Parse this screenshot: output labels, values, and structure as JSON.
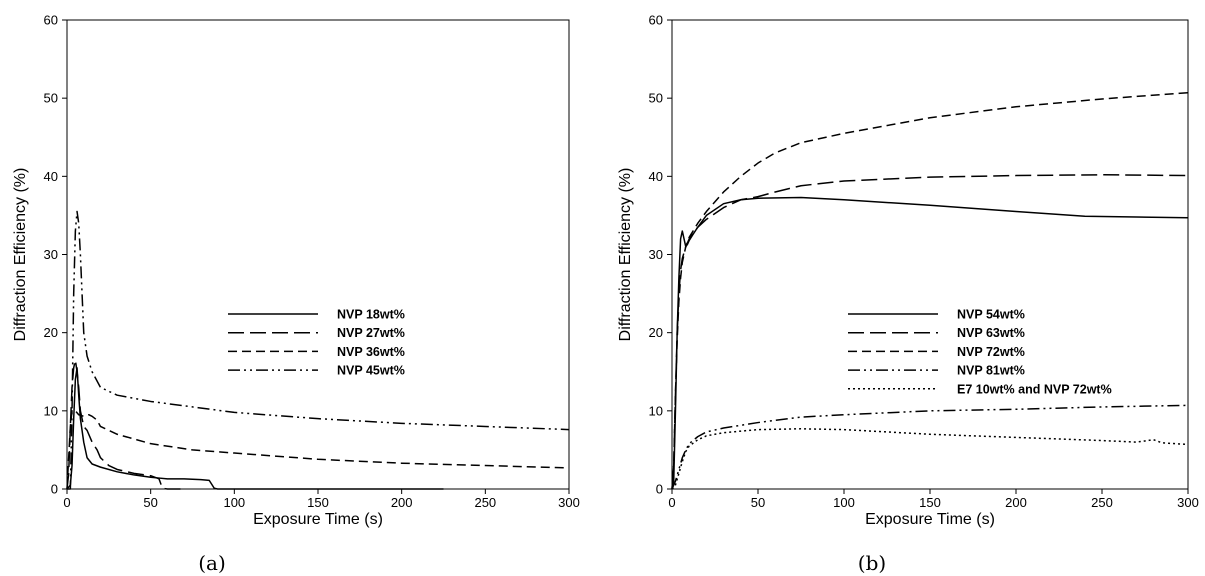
{
  "chart_data": [
    {
      "panel_label": "(a)",
      "type": "line",
      "xlabel": "Exposure Time (s)",
      "ylabel": "Diffraction Efficiency (%)",
      "xlim": [
        0,
        300
      ],
      "ylim": [
        0,
        60
      ],
      "xticks": [
        0,
        50,
        100,
        150,
        200,
        250,
        300
      ],
      "yticks": [
        0,
        10,
        20,
        30,
        40,
        50,
        60
      ],
      "grid": false,
      "legend_position": "center-right",
      "series": [
        {
          "name": "NVP 18wt%",
          "dash": "solid",
          "x": [
            0,
            2,
            3,
            4,
            5,
            6,
            7,
            8,
            10,
            12,
            15,
            20,
            30,
            40,
            50,
            55,
            60,
            70,
            80,
            85,
            88,
            90,
            100,
            150,
            200,
            225
          ],
          "y": [
            0,
            0.5,
            3,
            9,
            14,
            15.5,
            12,
            9,
            6,
            4,
            3.2,
            2.8,
            2.2,
            1.8,
            1.5,
            1.4,
            1.3,
            1.3,
            1.2,
            1.1,
            0.1,
            0,
            0,
            0,
            0,
            0
          ]
        },
        {
          "name": "NVP 27wt%",
          "dash": "long-dash",
          "x": [
            0,
            1,
            2,
            3,
            4,
            5,
            6,
            7,
            8,
            10,
            12,
            15,
            18,
            20,
            25,
            30,
            40,
            50,
            55,
            57,
            60,
            70
          ],
          "y": [
            0,
            2,
            8,
            13,
            15.5,
            16.5,
            15,
            13,
            10,
            8,
            7.5,
            6,
            5,
            4,
            3,
            2.5,
            2,
            1.7,
            1.3,
            0.1,
            0,
            0
          ]
        },
        {
          "name": "NVP 36wt%",
          "dash": "dash",
          "x": [
            0,
            1,
            2,
            3,
            4,
            5,
            7,
            10,
            13,
            15,
            18,
            20,
            30,
            50,
            75,
            100,
            150,
            200,
            250,
            300
          ],
          "y": [
            0,
            4,
            8,
            10,
            10.2,
            10,
            9.5,
            9.3,
            9.5,
            9.3,
            8.8,
            8,
            7,
            5.8,
            5,
            4.6,
            3.8,
            3.3,
            3.0,
            2.7
          ]
        },
        {
          "name": "NVP 45wt%",
          "dash": "dash-dot-dot",
          "x": [
            0,
            2,
            3,
            4,
            5,
            6,
            7,
            8,
            9,
            10,
            12,
            15,
            20,
            30,
            50,
            75,
            100,
            150,
            200,
            250,
            300
          ],
          "y": [
            0,
            0,
            10,
            25,
            33,
            35.5,
            34,
            30,
            25,
            20,
            17,
            15,
            13,
            12,
            11.2,
            10.5,
            9.8,
            9,
            8.4,
            8,
            7.6
          ]
        }
      ]
    },
    {
      "panel_label": "(b)",
      "type": "line",
      "xlabel": "Exposure Time (s)",
      "ylabel": "Diffraction Efficiency (%)",
      "xlim": [
        0,
        300
      ],
      "ylim": [
        0,
        60
      ],
      "xticks": [
        0,
        50,
        100,
        150,
        200,
        250,
        300
      ],
      "yticks": [
        0,
        10,
        20,
        30,
        40,
        50,
        60
      ],
      "grid": false,
      "legend_position": "center-right",
      "series": [
        {
          "name": "NVP 54wt%",
          "dash": "solid",
          "x": [
            0,
            1,
            2,
            3,
            4,
            5,
            6,
            7,
            8,
            9,
            10,
            12,
            15,
            20,
            30,
            40,
            50,
            75,
            100,
            150,
            200,
            240,
            270,
            300
          ],
          "y": [
            0,
            1,
            10,
            20,
            27,
            32,
            33,
            32,
            31,
            31.3,
            31.8,
            32.5,
            33.5,
            35,
            36.5,
            37,
            37.2,
            37.3,
            37,
            36.3,
            35.5,
            34.9,
            34.8,
            34.7
          ]
        },
        {
          "name": "NVP 63wt%",
          "dash": "long-dash",
          "x": [
            0,
            1,
            2,
            3,
            4,
            5,
            6,
            8,
            10,
            15,
            20,
            30,
            40,
            50,
            60,
            75,
            100,
            150,
            200,
            250,
            300
          ],
          "y": [
            0,
            3,
            12,
            20,
            25,
            28,
            29.5,
            31,
            32,
            33.5,
            34.5,
            36,
            37,
            37.4,
            38,
            38.8,
            39.4,
            39.9,
            40.1,
            40.2,
            40.1
          ]
        },
        {
          "name": "NVP 72wt%",
          "dash": "dash",
          "x": [
            0,
            1,
            2,
            3,
            4,
            5,
            6,
            8,
            10,
            15,
            20,
            30,
            40,
            50,
            60,
            75,
            100,
            150,
            200,
            250,
            300
          ],
          "y": [
            0,
            3,
            12,
            19,
            24,
            27,
            29,
            31,
            32.2,
            34,
            35.5,
            38,
            40,
            41.7,
            43,
            44.3,
            45.5,
            47.5,
            48.9,
            49.9,
            50.7
          ]
        },
        {
          "name": "NVP 81wt%",
          "dash": "dash-dot-dot",
          "x": [
            0,
            2,
            4,
            6,
            8,
            10,
            15,
            20,
            30,
            50,
            75,
            100,
            150,
            200,
            250,
            300
          ],
          "y": [
            0,
            1,
            2.5,
            4,
            5,
            5.8,
            6.7,
            7.3,
            7.8,
            8.5,
            9.2,
            9.5,
            10,
            10.2,
            10.5,
            10.7
          ]
        },
        {
          "name": "E7 10wt% and NVP 72wt%",
          "dash": "dot",
          "x": [
            0,
            2,
            4,
            6,
            8,
            10,
            15,
            20,
            30,
            50,
            75,
            100,
            125,
            150,
            200,
            250,
            270,
            280,
            285,
            300
          ],
          "y": [
            0,
            0.5,
            2,
            3.5,
            4.8,
            5.5,
            6.3,
            6.8,
            7.2,
            7.6,
            7.7,
            7.6,
            7.3,
            7.0,
            6.6,
            6.2,
            6.0,
            6.3,
            5.9,
            5.7
          ]
        }
      ]
    }
  ]
}
